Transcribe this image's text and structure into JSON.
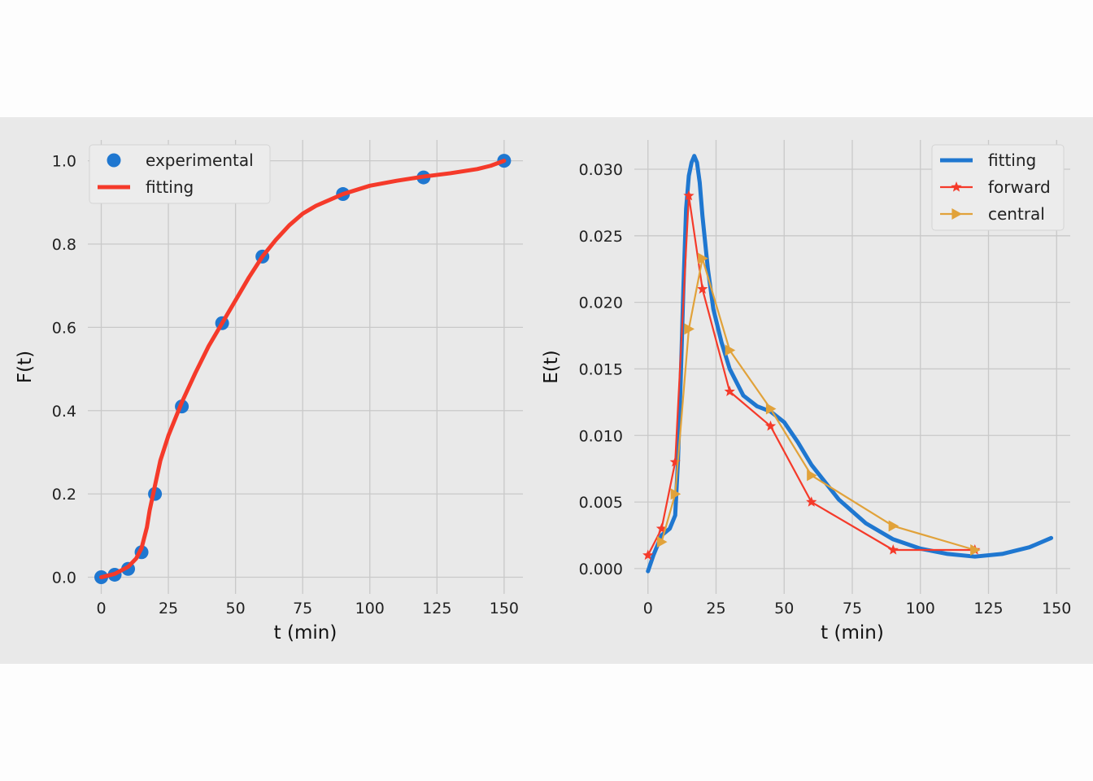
{
  "chart_data": [
    {
      "type": "line",
      "xlabel": "t (min)",
      "ylabel": "F(t)",
      "xlim": [
        -5,
        157
      ],
      "ylim": [
        -0.04,
        1.05
      ],
      "xticks": [
        "0",
        "25",
        "50",
        "75",
        "100",
        "125",
        "150"
      ],
      "xtick_values": [
        0,
        25,
        50,
        75,
        100,
        125,
        150
      ],
      "yticks": [
        "0.0",
        "0.2",
        "0.4",
        "0.6",
        "0.8",
        "1.0"
      ],
      "ytick_values": [
        0,
        0.2,
        0.4,
        0.6,
        0.8,
        1.0
      ],
      "grid": true,
      "legend_position": "upper-left",
      "series": [
        {
          "name": "experimental",
          "kind": "scatter",
          "color": "#1f77d0",
          "x": [
            0,
            5,
            10,
            15,
            20,
            30,
            45,
            60,
            90,
            120,
            150
          ],
          "y": [
            0.0,
            0.006,
            0.02,
            0.06,
            0.2,
            0.41,
            0.61,
            0.77,
            0.92,
            0.96,
            1.0
          ]
        },
        {
          "name": "fitting",
          "kind": "line",
          "color": "#f53a2a",
          "x": [
            0,
            5,
            10,
            13,
            15,
            17,
            18,
            20,
            22,
            25,
            30,
            35,
            40,
            45,
            50,
            55,
            60,
            65,
            70,
            75,
            80,
            90,
            100,
            110,
            120,
            130,
            140,
            145,
            150
          ],
          "y": [
            0.0,
            0.008,
            0.025,
            0.045,
            0.07,
            0.12,
            0.16,
            0.22,
            0.28,
            0.34,
            0.42,
            0.49,
            0.555,
            0.61,
            0.665,
            0.72,
            0.77,
            0.81,
            0.845,
            0.873,
            0.892,
            0.92,
            0.94,
            0.952,
            0.962,
            0.97,
            0.98,
            0.988,
            1.0
          ]
        }
      ]
    },
    {
      "type": "line",
      "xlabel": "t (min)",
      "ylabel": "E(t)",
      "xlim": [
        -5,
        155
      ],
      "ylim": [
        -0.0019,
        0.0322
      ],
      "xticks": [
        "0",
        "25",
        "50",
        "75",
        "100",
        "125",
        "150"
      ],
      "xtick_values": [
        0,
        25,
        50,
        75,
        100,
        125,
        150
      ],
      "yticks": [
        "0.000",
        "0.005",
        "0.010",
        "0.015",
        "0.020",
        "0.025",
        "0.030"
      ],
      "ytick_values": [
        0,
        0.005,
        0.01,
        0.015,
        0.02,
        0.025,
        0.03
      ],
      "grid": true,
      "legend_position": "upper-right",
      "series": [
        {
          "name": "fitting",
          "kind": "line",
          "color": "#1f77d0",
          "x": [
            0,
            2,
            5,
            8,
            10,
            11,
            12,
            13,
            14,
            15,
            16,
            17,
            18,
            19,
            20,
            22,
            24,
            27,
            30,
            35,
            40,
            45,
            50,
            55,
            60,
            70,
            80,
            90,
            100,
            110,
            120,
            130,
            140,
            148
          ],
          "y": [
            -0.0002,
            0.001,
            0.0025,
            0.003,
            0.004,
            0.008,
            0.014,
            0.021,
            0.027,
            0.0295,
            0.0305,
            0.031,
            0.0305,
            0.029,
            0.0265,
            0.0225,
            0.0195,
            0.017,
            0.015,
            0.013,
            0.0122,
            0.0118,
            0.011,
            0.0095,
            0.0078,
            0.0052,
            0.0034,
            0.0022,
            0.0015,
            0.0011,
            0.0009,
            0.0011,
            0.0016,
            0.0023
          ]
        },
        {
          "name": "forward",
          "kind": "line-marker",
          "marker": "star",
          "color": "#f53a2a",
          "x": [
            0,
            5,
            10,
            15,
            20,
            30,
            45,
            60,
            90,
            120
          ],
          "y": [
            0.001,
            0.003,
            0.008,
            0.028,
            0.021,
            0.0133,
            0.0107,
            0.005,
            0.0014,
            0.0014
          ]
        },
        {
          "name": "central",
          "kind": "line-marker",
          "marker": "triangle-right",
          "color": "#e1a23a",
          "x": [
            5,
            10,
            15,
            20,
            30,
            45,
            60,
            90,
            120
          ],
          "y": [
            0.002,
            0.0056,
            0.018,
            0.0233,
            0.0164,
            0.012,
            0.007,
            0.0032,
            0.0014
          ]
        }
      ]
    }
  ]
}
